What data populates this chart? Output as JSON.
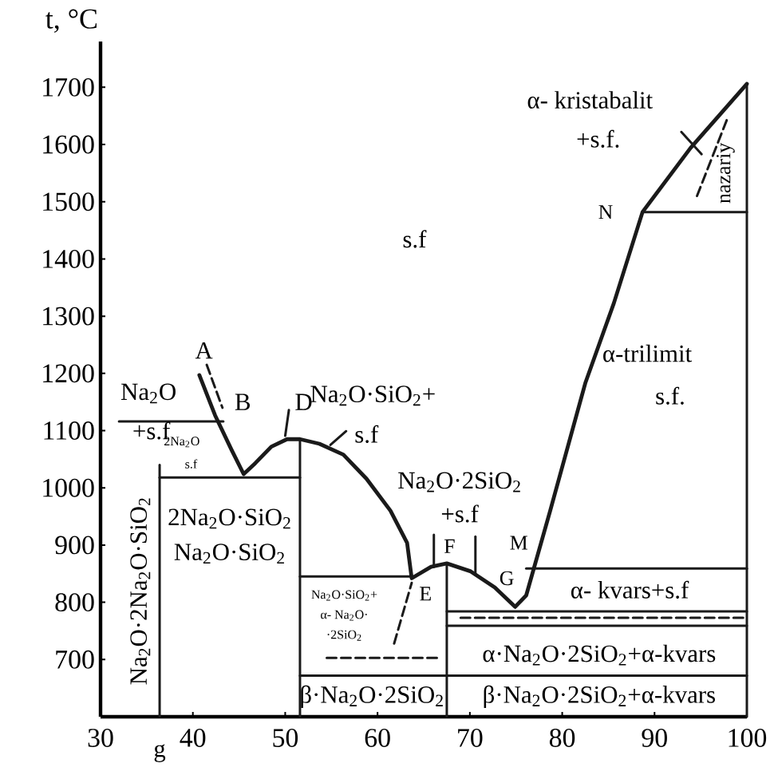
{
  "chart_data": {
    "type": "line",
    "ylabel": "t, °C",
    "xlim": [
      30,
      100
    ],
    "ylim": [
      600,
      1780
    ],
    "xticks": [
      30,
      40,
      50,
      60,
      70,
      80,
      90,
      100
    ],
    "yticks": [
      700,
      800,
      900,
      1000,
      1100,
      1200,
      1300,
      1400,
      1500,
      1600,
      1700
    ],
    "line_style": "solid",
    "series": [
      {
        "color": "#1a1a1a",
        "x": [
          40.7,
          42.4,
          44.2,
          45.5,
          46.75,
          48.5,
          50.2,
          51.6,
          53.7,
          56.3,
          58.8,
          61.4,
          63.2,
          63.7,
          65.8,
          67.5,
          70.1,
          72.7,
          74.9,
          76.1,
          78.7,
          82.5,
          85.6,
          88.7,
          93.9,
          100
        ],
        "values": [
          1197,
          1127,
          1066,
          1024,
          1043,
          1072,
          1085,
          1085,
          1077,
          1058,
          1016,
          960,
          904,
          842,
          862,
          868,
          854,
          826,
          792,
          812,
          960,
          1183,
          1323,
          1482,
          1594,
          1706
        ]
      },
      {
        "color": "#1a1a1a",
        "x": [
          32,
          43.3
        ],
        "values": [
          1116,
          1116
        ]
      },
      {
        "color": "#1a1a1a",
        "x": [
          36.4,
          36.4
        ],
        "values": [
          1040,
          600
        ]
      },
      {
        "color": "#1a1a1a",
        "x": [
          36.4,
          51.6
        ],
        "values": [
          1018,
          1018
        ]
      },
      {
        "color": "#1a1a1a",
        "x": [
          51.6,
          51.6
        ],
        "values": [
          1085,
          600
        ]
      },
      {
        "color": "#1a1a1a",
        "x": [
          51.6,
          63.5
        ],
        "values": [
          845,
          845
        ]
      },
      {
        "color": "#1a1a1a",
        "x": [
          51.6,
          100
        ],
        "values": [
          672,
          672
        ]
      },
      {
        "color": "#1a1a1a",
        "x": [
          67.5,
          67.5
        ],
        "values": [
          868,
          600
        ]
      },
      {
        "color": "#1a1a1a",
        "x": [
          76.1,
          100
        ],
        "values": [
          859,
          859
        ]
      },
      {
        "color": "#1a1a1a",
        "x": [
          67.5,
          100
        ],
        "values": [
          784,
          784
        ]
      },
      {
        "color": "#1a1a1a",
        "line_style": "dashed",
        "x": [
          69,
          100
        ],
        "values": [
          773,
          773
        ]
      },
      {
        "color": "#1a1a1a",
        "x": [
          67.5,
          100
        ],
        "values": [
          759,
          759
        ]
      },
      {
        "color": "#1a1a1a",
        "x": [
          88.7,
          100
        ],
        "values": [
          1482,
          1482
        ]
      },
      {
        "color": "#1a1a1a",
        "line_style": "dashed",
        "x": [
          94.6,
          98
        ],
        "values": [
          1510,
          1650
        ]
      },
      {
        "color": "#1a1a1a",
        "x": [
          92.9,
          95.1
        ],
        "values": [
          1622,
          1583
        ]
      },
      {
        "color": "#1a1a1a",
        "line_style": "dashed",
        "x": [
          54.5,
          66.6
        ],
        "values": [
          703,
          703
        ]
      },
      {
        "color": "#1a1a1a",
        "line_style": "dashed",
        "x": [
          61.8,
          63.7
        ],
        "values": [
          728,
          834
        ]
      },
      {
        "color": "#1a1a1a",
        "x": [
          50.0,
          50.4
        ],
        "values": [
          1091,
          1136
        ]
      },
      {
        "color": "#1a1a1a",
        "x": [
          54.9,
          56.6
        ],
        "values": [
          1075,
          1099
        ]
      },
      {
        "color": "#1a1a1a",
        "x": [
          66.1,
          66.1
        ],
        "values": [
          918,
          862
        ]
      },
      {
        "color": "#1a1a1a",
        "x": [
          70.6,
          70.6
        ],
        "values": [
          915,
          848
        ]
      },
      {
        "color": "#1a1a1a",
        "line_style": "dashed",
        "x": [
          41.5,
          43.2
        ],
        "values": [
          1215,
          1140
        ]
      },
      {
        "color": "#1a1a1a",
        "x": [
          100,
          100
        ],
        "values": [
          600,
          1706
        ]
      }
    ],
    "annotations": [
      "A",
      "B",
      "Na$_{2}$O",
      "+s.f",
      "Na$_{2}$O·SiO$_{2}$+",
      "s.f",
      "D",
      "2Na$_{2}$O",
      "s.f",
      "Na$_{2}$O·2Na$_{2}$O·SiO$_{2}$",
      "2Na$_{2}$O·SiO$_{2}$",
      "Na$_{2}$O·SiO$_{2}$",
      "s.f",
      "α- kristabalit",
      "+s.f.",
      "N",
      "nazariy",
      "α-trilimit",
      "s.f.",
      "Na$_{2}$O·2SiO$_{2}$",
      "+s.f",
      "F",
      "M",
      "G",
      "E",
      "α- kvars+s.f",
      "α·Na$_{2}$O·2SiO$_{2}$+α-kvars",
      "β·Na$_{2}$O·2SiO$_{2}$+α-kvars",
      "β·Na$_{2}$O·2SiO$_{2}$",
      "Na$_{2}$O·SiO$_{2}$+",
      "α- Na$_{2}$O·",
      "·2SiO$_{2}$",
      "g"
    ]
  }
}
